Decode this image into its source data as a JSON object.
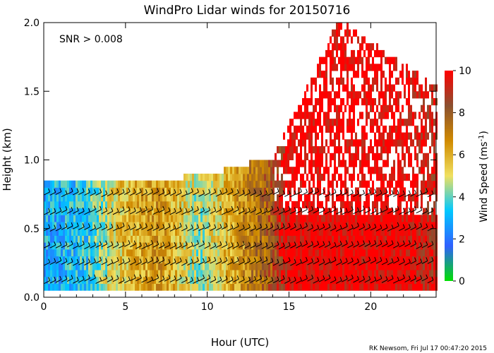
{
  "chart_data": {
    "type": "heatmap",
    "title": "WindPro Lidar winds for 20150716",
    "xlabel": "Hour (UTC)",
    "ylabel": "Height (km)",
    "xlim": [
      0,
      24
    ],
    "ylim": [
      0.0,
      2.0
    ],
    "x_ticks": [
      0,
      5,
      10,
      15,
      20
    ],
    "y_ticks": [
      0.0,
      0.5,
      1.0,
      1.5,
      2.0
    ],
    "annotation": "SNR > 0.008",
    "colorbar": {
      "label": "Wind Speed (ms",
      "label_superscript": "-1",
      "label_close": ")",
      "range": [
        0,
        10
      ],
      "ticks": [
        0,
        2,
        4,
        6,
        8,
        10
      ],
      "colors": [
        "#00e000",
        "#3060ff",
        "#00c8ff",
        "#f0e060",
        "#d08a00",
        "#8a5030",
        "#ff0000"
      ]
    },
    "mixed_layer_top_km": [
      {
        "hour": 0,
        "km": 0.82
      },
      {
        "hour": 4,
        "km": 0.8
      },
      {
        "hour": 8,
        "km": 0.84
      },
      {
        "hour": 11,
        "km": 0.9
      },
      {
        "hour": 14,
        "km": 1.0
      },
      {
        "hour": 18,
        "km": 2.0
      },
      {
        "hour": 24,
        "km": 1.5
      }
    ],
    "wind_speed_profile": [
      {
        "hour": 0.5,
        "speed": 3.0
      },
      {
        "hour": 2.5,
        "speed": 3.5
      },
      {
        "hour": 4.5,
        "speed": 5.5
      },
      {
        "hour": 7,
        "speed": 6.5
      },
      {
        "hour": 9.5,
        "speed": 4.5
      },
      {
        "hour": 12,
        "speed": 6.5
      },
      {
        "hour": 13.8,
        "speed": 8.0
      },
      {
        "hour": 15,
        "speed": 10.0
      },
      {
        "hour": 18,
        "speed": 10.0
      },
      {
        "hour": 22,
        "speed": 10.0
      },
      {
        "hour": 24,
        "speed": 9.0
      }
    ]
  },
  "footer": "RK Newsom, Fri Jul 17 00:47:20 2015"
}
